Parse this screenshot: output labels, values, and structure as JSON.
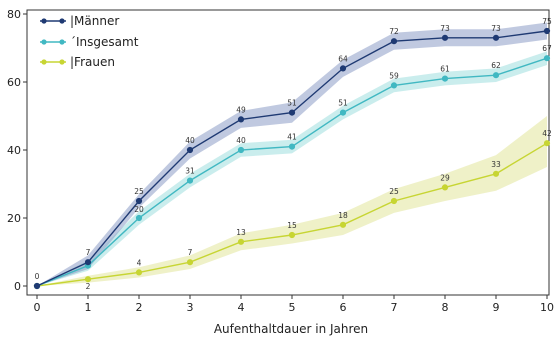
{
  "chart_data": {
    "type": "line",
    "title": "",
    "xlabel": "Aufenthaltdauer in Jahren",
    "ylabel": "",
    "x": [
      0,
      1,
      2,
      3,
      4,
      5,
      6,
      7,
      8,
      9,
      10
    ],
    "xlim": [
      0,
      10
    ],
    "ylim": [
      0,
      80
    ],
    "yticks": [
      0,
      20,
      40,
      60,
      80
    ],
    "grid": false,
    "legend_position": "top-left",
    "series": [
      {
        "name": "|Männer",
        "color": "#1f3a73",
        "band_color": "#8d9cc6",
        "values": [
          0,
          7,
          25,
          40,
          49,
          51,
          64,
          72,
          73,
          73,
          75
        ],
        "lower": [
          0,
          5,
          23,
          37.5,
          46.5,
          48,
          61.5,
          69.5,
          70.5,
          70.5,
          72.5
        ],
        "upper": [
          0,
          9,
          27,
          42.5,
          51.5,
          54,
          66.5,
          74.5,
          75.5,
          75.5,
          77.5
        ],
        "labels": [
          "0",
          "7",
          "25",
          "40",
          "49",
          "51",
          "64",
          "72",
          "73",
          "73",
          "75"
        ]
      },
      {
        "name": "´Insgesamt",
        "color": "#41b8c2",
        "band_color": "#9fdedf",
        "values": [
          0,
          6,
          20,
          31,
          40,
          41,
          51,
          59,
          61,
          62,
          67
        ],
        "lower": [
          0,
          4.5,
          18,
          29,
          38,
          39,
          49,
          57,
          59,
          60,
          65
        ],
        "upper": [
          0,
          7.5,
          22,
          33,
          42,
          43,
          53,
          61,
          63,
          64,
          69
        ],
        "labels": [
          "",
          "",
          "20",
          "31",
          "40",
          "41",
          "51",
          "59",
          "61",
          "62",
          "67"
        ]
      },
      {
        "name": "|Frauen",
        "color": "#c7d533",
        "band_color": "#e2e69a",
        "values": [
          0,
          2,
          4,
          7,
          13,
          15,
          18,
          25,
          29,
          33,
          42
        ],
        "lower": [
          0,
          1,
          2.5,
          5,
          10.5,
          12.5,
          15,
          21.5,
          25,
          28,
          35
        ],
        "upper": [
          0,
          3,
          5.5,
          9,
          15.5,
          18,
          21.5,
          28.5,
          33,
          38.5,
          50
        ],
        "labels": [
          "",
          "2",
          "4",
          "7",
          "13",
          "15",
          "18",
          "25",
          "29",
          "33",
          "42"
        ]
      }
    ]
  }
}
